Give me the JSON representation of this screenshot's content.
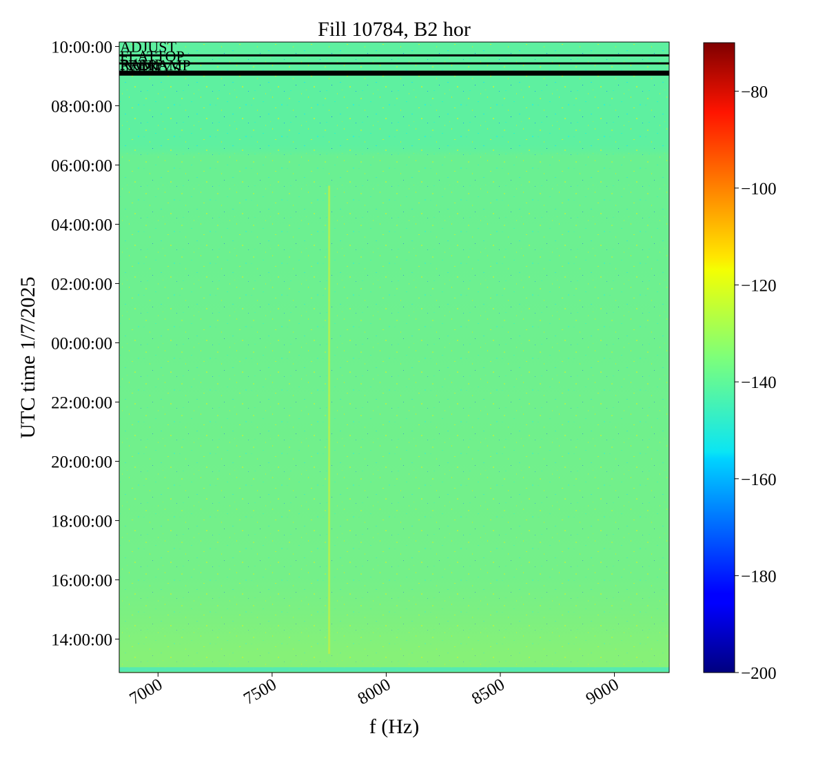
{
  "chart_data": {
    "type": "heatmap",
    "title": "Fill 10784, B2 hor",
    "xlabel": "f (Hz)",
    "ylabel": "UTC time 1/7/2025",
    "xlim": [
      6830,
      9240
    ],
    "ylim_hours": [
      12.87,
      34.15
    ],
    "x_ticks": [
      7000,
      7500,
      8000,
      8500,
      9000
    ],
    "x_tick_labels": [
      "7000",
      "7500",
      "8000",
      "8500",
      "9000"
    ],
    "y_ticks_hours": [
      14,
      16,
      18,
      20,
      22,
      24,
      26,
      28,
      30,
      32,
      34
    ],
    "y_tick_labels": [
      "14:00:00",
      "16:00:00",
      "18:00:00",
      "20:00:00",
      "22:00:00",
      "00:00:00",
      "02:00:00",
      "04:00:00",
      "06:00:00",
      "08:00:00",
      "10:00:00"
    ],
    "colorbar": {
      "colormap": "jet",
      "range": [
        -200,
        -70
      ],
      "ticks": [
        -80,
        -100,
        -120,
        -140,
        -160,
        -180,
        -200
      ],
      "tick_labels": [
        "−80",
        "−100",
        "−120",
        "−140",
        "−160",
        "−180",
        "−200"
      ]
    },
    "typical_level": -137,
    "spectral_line_hz": 7750,
    "mode_lines": [
      {
        "label": "ADJUST",
        "time_hours": 33.7
      },
      {
        "label": "FLATTOP",
        "time_hours": 33.43
      },
      {
        "label": "PRERAMP",
        "time_hours": 33.15
      },
      {
        "label": "RAMP",
        "time_hours": 33.1
      },
      {
        "label": "INJPHYS",
        "time_hours": 33.05
      }
    ]
  }
}
